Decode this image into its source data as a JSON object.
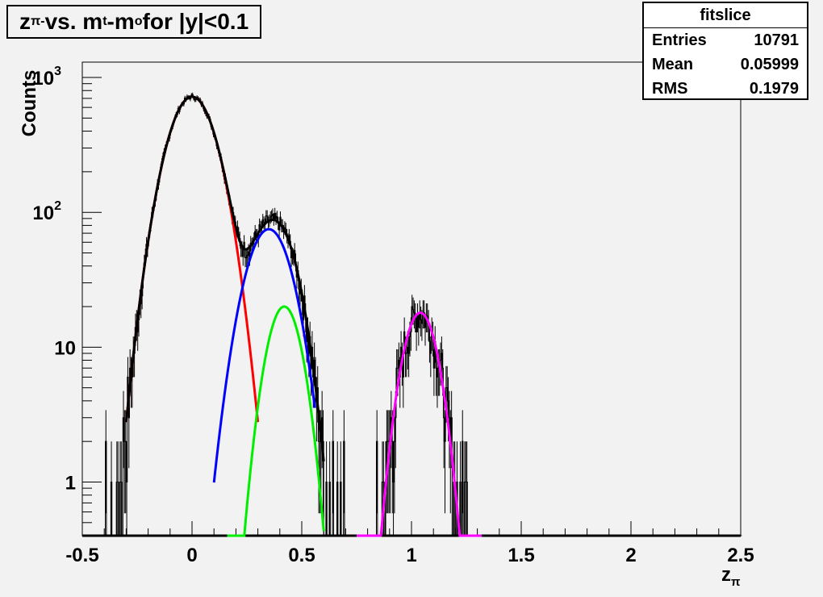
{
  "title": {
    "main": "z",
    "main_sub": "π-",
    "vs": " vs. m",
    "m_sub": "t",
    "dash": "-m",
    "o_sub": "o",
    "rest": " for |y|<0.1"
  },
  "stats": {
    "name": "fitslice",
    "rows": [
      {
        "label": "Entries",
        "value": "10791"
      },
      {
        "label": "Mean",
        "value": "0.05999"
      },
      {
        "label": "RMS",
        "value": "0.1979"
      }
    ]
  },
  "chart_data": {
    "type": "line",
    "xlabel": "z",
    "xlabel_sub": "π",
    "ylabel": "Counts",
    "xlim": [
      -0.5,
      2.5
    ],
    "ylim": [
      0.4,
      1300
    ],
    "yscale": "log",
    "xticks": [
      "-0.5",
      "0",
      "0.5",
      "1",
      "1.5",
      "2",
      "2.5"
    ],
    "xtick_values": [
      -0.5,
      0,
      0.5,
      1,
      1.5,
      2,
      2.5
    ],
    "yticks": [
      {
        "value": 1,
        "label": "1"
      },
      {
        "value": 10,
        "label": "10"
      },
      {
        "value": 100,
        "label": "10",
        "exp": "2"
      },
      {
        "value": 1000,
        "label": "10",
        "exp": "3"
      }
    ],
    "histogram_color": "#000000",
    "series": [
      {
        "color": "#ff0000",
        "amp": 720,
        "mean": 0.0,
        "sigma": 0.09,
        "range": [
          -0.3,
          0.3
        ]
      },
      {
        "color": "#0000ff",
        "amp": 75,
        "mean": 0.35,
        "sigma": 0.085,
        "range": [
          0.1,
          0.56
        ]
      },
      {
        "color": "#00ee00",
        "amp": 20,
        "mean": 0.42,
        "sigma": 0.065,
        "range": [
          0.16,
          0.6
        ]
      },
      {
        "color": "#ff00ff",
        "amp": 18,
        "mean": 1.04,
        "sigma": 0.065,
        "range": [
          0.75,
          1.32
        ]
      },
      {
        "color": "#000000",
        "type": "sum",
        "range": [
          -0.3,
          0.6
        ]
      }
    ]
  }
}
